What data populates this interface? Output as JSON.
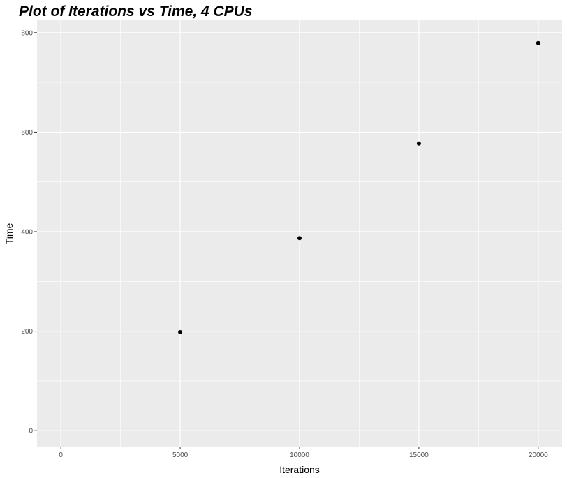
{
  "chart_data": {
    "type": "scatter",
    "title": "Plot of Iterations vs Time, 4 CPUs",
    "xlabel": "Iterations",
    "ylabel": "Time",
    "xlim": [
      -1000,
      21000
    ],
    "ylim": [
      -32,
      825
    ],
    "x_ticks": [
      0,
      5000,
      10000,
      15000,
      20000
    ],
    "y_ticks": [
      0,
      200,
      400,
      600,
      800
    ],
    "grid": true,
    "points": [
      {
        "x": 5000,
        "y": 198
      },
      {
        "x": 10000,
        "y": 387
      },
      {
        "x": 15000,
        "y": 577
      },
      {
        "x": 20000,
        "y": 779
      }
    ],
    "colors": {
      "panel": "#ebebeb",
      "grid": "#ffffff",
      "point": "#000000"
    }
  }
}
